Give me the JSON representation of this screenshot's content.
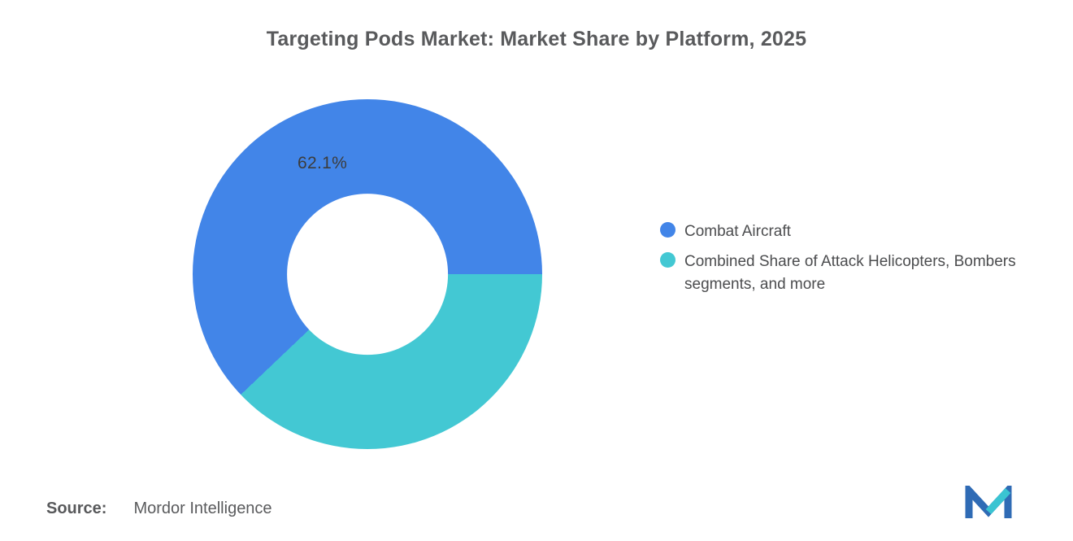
{
  "title": "Targeting Pods Market: Market Share by Platform, 2025",
  "chart_data": {
    "type": "pie",
    "subtype": "donut",
    "title": "Targeting Pods Market: Market Share by Platform, 2025",
    "inner_radius_ratio": 0.46,
    "start_angle": "3-oclock, others drawn clockwise first",
    "legend_position": "right",
    "slices": [
      {
        "label": "Combat Aircraft",
        "value": 62.1,
        "color": "#4285e8",
        "data_label": "62.1%"
      },
      {
        "label": "Combined Share of Attack Helicopters, Bombers segments, and more",
        "value": 37.9,
        "color": "#43c8d3",
        "data_label": ""
      }
    ]
  },
  "legend": {
    "items": [
      {
        "label": "Combat Aircraft",
        "color": "#4285e8"
      },
      {
        "label": "Combined Share of Attack Helicopters, Bombers segments, and more",
        "color": "#43c8d3"
      }
    ]
  },
  "source": {
    "prefix": "Source:",
    "text": "Mordor Intelligence"
  },
  "logo": {
    "name": "mordor-intelligence-logo",
    "blue": "#2f6bb5",
    "teal": "#3ac4d2"
  }
}
